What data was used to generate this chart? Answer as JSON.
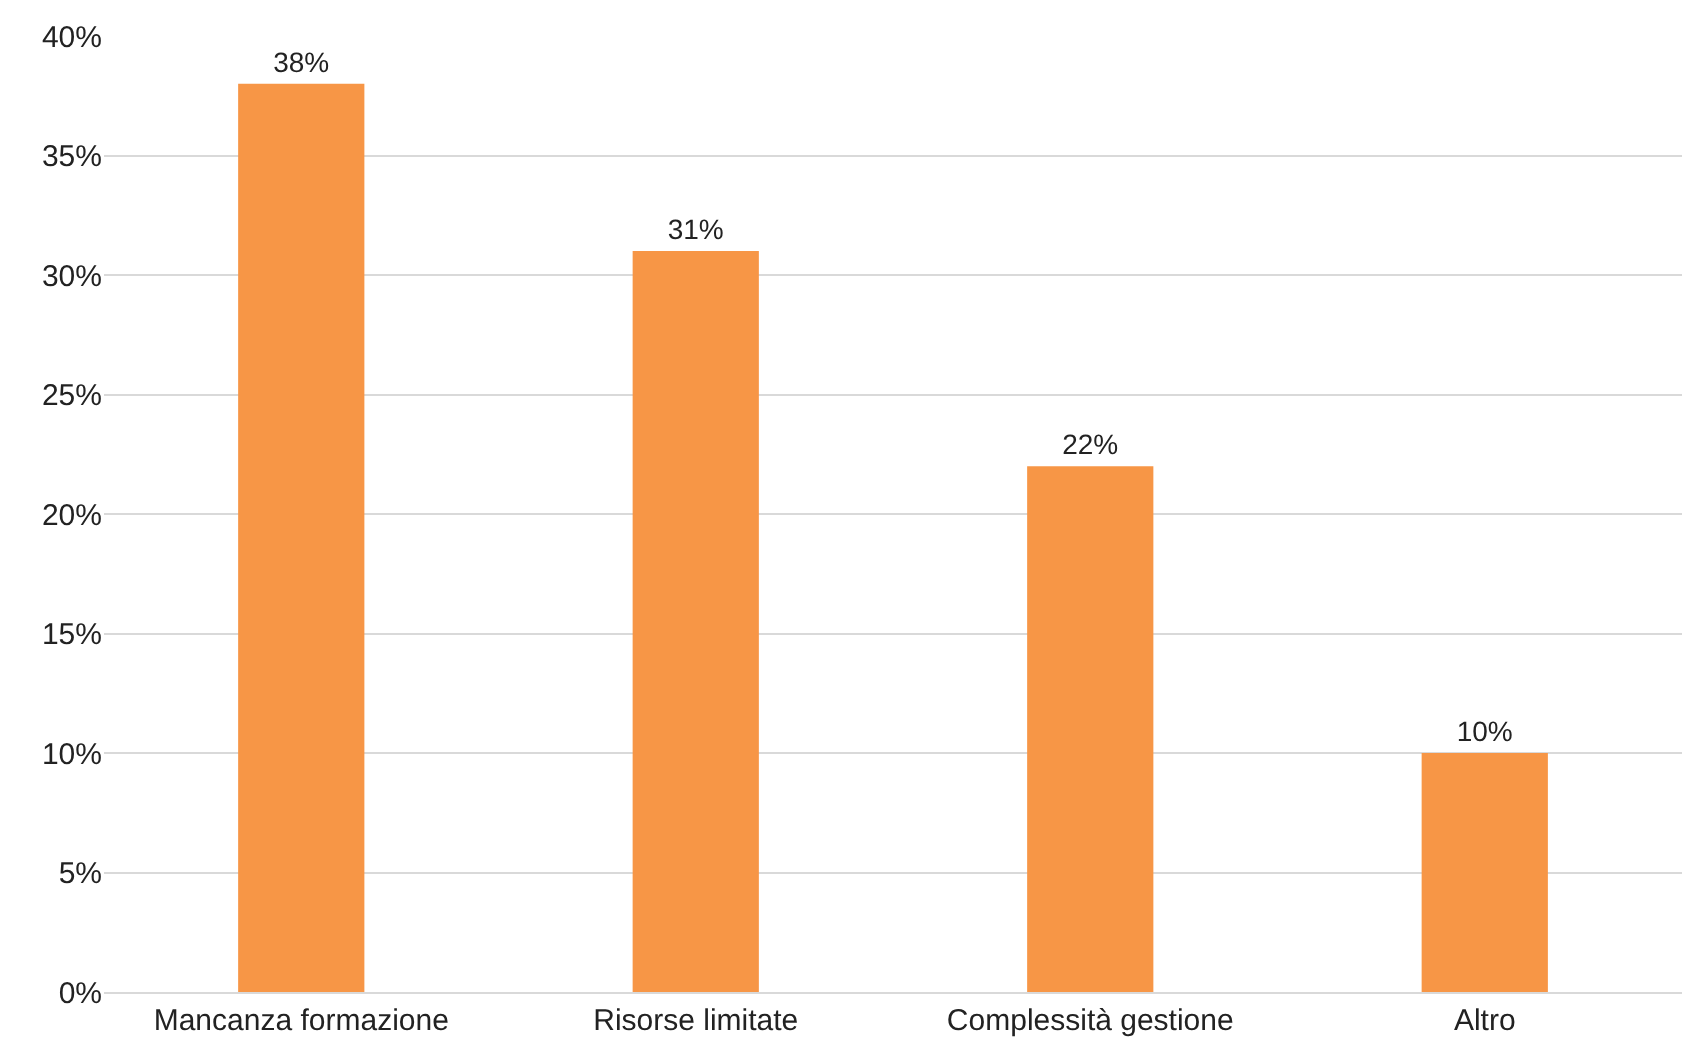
{
  "chart_data": {
    "type": "bar",
    "categories": [
      "Mancanza formazione",
      "Risorse limitate",
      "Complessità gestione",
      "Altro"
    ],
    "values": [
      38,
      31,
      22,
      10
    ],
    "color": "#f79646",
    "value_labels": [
      "38%",
      "31%",
      "22%",
      "10%"
    ],
    "ylim": [
      0,
      40
    ],
    "yticks": [
      {
        "value": 0,
        "label": "0%"
      },
      {
        "value": 5,
        "label": "5%"
      },
      {
        "value": 10,
        "label": "10%"
      },
      {
        "value": 15,
        "label": "15%"
      },
      {
        "value": 20,
        "label": "20%"
      },
      {
        "value": 25,
        "label": "25%"
      },
      {
        "value": 30,
        "label": "30%"
      },
      {
        "value": 35,
        "label": "35%"
      },
      {
        "value": 40,
        "label": "40%"
      }
    ],
    "grid": "y",
    "legend": false
  }
}
